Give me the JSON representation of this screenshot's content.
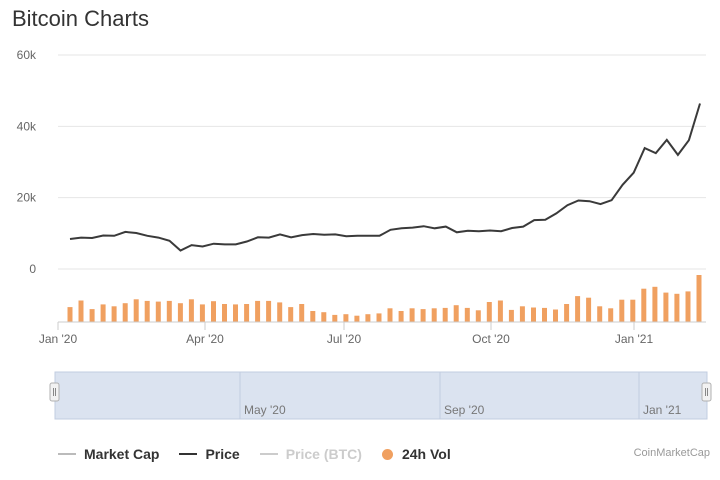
{
  "title": "Bitcoin Charts",
  "credit": "CoinMarketCap",
  "colors": {
    "price": "#3a3a3a",
    "volume": "#f0a060",
    "grid": "#e6e6e6",
    "navigator": "#dbe3f0",
    "inactive": "#cccccc"
  },
  "legend": [
    {
      "label": "Market Cap",
      "color": "#bbbbbb",
      "marker": "line",
      "active": true
    },
    {
      "label": "Price",
      "color": "#333333",
      "marker": "line",
      "active": true
    },
    {
      "label": "Price (BTC)",
      "color": "#cccccc",
      "marker": "line",
      "active": false
    },
    {
      "label": "24h Vol",
      "color": "#f0a060",
      "marker": "dot",
      "active": true
    }
  ],
  "navigator": {
    "labels": [
      "May '20",
      "Sep '20",
      "Jan '21"
    ]
  },
  "chart_data": {
    "type": "line",
    "x_axis": {
      "ticks": [
        "Jan '20",
        "Apr '20",
        "Jul '20",
        "Oct '20",
        "Jan '21"
      ]
    },
    "y_axis": {
      "ticks": [
        "0",
        "20k",
        "40k",
        "60k"
      ],
      "range": [
        0,
        60000
      ]
    },
    "grid": true,
    "legend_position": "bottom",
    "series": [
      {
        "name": "Price",
        "values": [
          8400,
          8800,
          8700,
          9400,
          9300,
          10400,
          10100,
          9300,
          8800,
          7900,
          5200,
          6700,
          6300,
          7100,
          6900,
          6900,
          7700,
          8900,
          8800,
          9700,
          8900,
          9500,
          9800,
          9600,
          9700,
          9200,
          9300,
          9300,
          9300,
          11000,
          11400,
          11600,
          12000,
          11400,
          11900,
          10300,
          10700,
          10600,
          10800,
          10600,
          11500,
          11900,
          13700,
          13800,
          15600,
          17900,
          19200,
          19000,
          18200,
          19300,
          23600,
          27000,
          33900,
          32500,
          36200,
          32000,
          36100,
          46400
        ]
      },
      {
        "name": "24h Vol",
        "values": [
          0.38,
          0.55,
          0.33,
          0.45,
          0.4,
          0.48,
          0.58,
          0.54,
          0.52,
          0.54,
          0.48,
          0.58,
          0.45,
          0.53,
          0.46,
          0.45,
          0.46,
          0.54,
          0.54,
          0.5,
          0.38,
          0.46,
          0.28,
          0.25,
          0.18,
          0.2,
          0.16,
          0.2,
          0.22,
          0.35,
          0.28,
          0.35,
          0.33,
          0.35,
          0.36,
          0.43,
          0.36,
          0.3,
          0.51,
          0.55,
          0.31,
          0.4,
          0.37,
          0.36,
          0.32,
          0.46,
          0.66,
          0.62,
          0.4,
          0.35,
          0.57,
          0.57,
          0.85,
          0.9,
          0.75,
          0.72,
          0.78,
          1.2
        ]
      }
    ]
  }
}
